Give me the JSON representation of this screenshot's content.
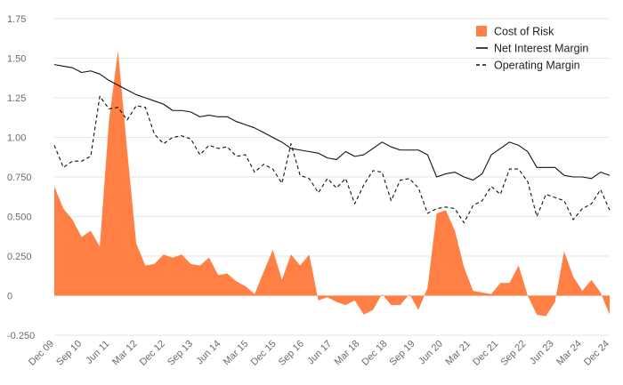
{
  "chart_data": {
    "type": "line",
    "title": "",
    "xlabel": "",
    "ylabel": "",
    "ylim": [
      -0.25,
      1.75
    ],
    "yticks": [
      -0.25,
      0,
      0.25,
      0.5,
      0.75,
      1.0,
      1.25,
      1.5,
      1.75
    ],
    "ytick_labels": [
      "-0.250",
      "0",
      "0.250",
      "0.500",
      "0.750",
      "1.00",
      "1.25",
      "1.50",
      "1.75"
    ],
    "x_tick_labels": [
      "Dec 09",
      "Sep 10",
      "Jun 11",
      "Mar 12",
      "Dec 12",
      "Sep 13",
      "Jun 14",
      "Mar 15",
      "Dec 15",
      "Sep 16",
      "Jun 17",
      "Mar 18",
      "Dec 18",
      "Sep 19",
      "Jun 20",
      "Mar 21",
      "Dec 21",
      "Sep 22",
      "Jun 23",
      "Mar 24",
      "Dec 24"
    ],
    "grid": "horizontal",
    "legend_position": "top-right",
    "colors": {
      "cost_of_risk": "#ff7f45",
      "net_interest_margin": "#111111",
      "operating_margin": "#111111"
    },
    "series": [
      {
        "name": "Cost of Risk",
        "style": "area",
        "values": [
          0.69,
          0.55,
          0.48,
          0.37,
          0.41,
          0.31,
          1.1,
          1.55,
          0.92,
          0.33,
          0.19,
          0.2,
          0.26,
          0.24,
          0.26,
          0.2,
          0.19,
          0.24,
          0.13,
          0.14,
          0.09,
          0.06,
          0.01,
          0.15,
          0.29,
          0.1,
          0.26,
          0.19,
          0.26,
          -0.03,
          -0.01,
          -0.04,
          -0.06,
          -0.03,
          -0.12,
          -0.09,
          0.01,
          -0.06,
          -0.06,
          0.01,
          -0.09,
          0.05,
          0.52,
          0.54,
          0.41,
          0.18,
          0.03,
          0.02,
          0.01,
          0.08,
          0.08,
          0.19,
          0.0,
          -0.12,
          -0.13,
          -0.04,
          0.28,
          0.12,
          0.03,
          0.1,
          0.02,
          -0.12
        ]
      },
      {
        "name": "Net Interest Margin",
        "style": "solid",
        "values": [
          1.46,
          1.45,
          1.44,
          1.41,
          1.42,
          1.4,
          1.36,
          1.33,
          1.3,
          1.27,
          1.25,
          1.23,
          1.21,
          1.17,
          1.17,
          1.16,
          1.13,
          1.14,
          1.13,
          1.13,
          1.1,
          1.08,
          1.06,
          1.03,
          1.0,
          0.97,
          0.93,
          0.92,
          0.91,
          0.9,
          0.87,
          0.86,
          0.91,
          0.88,
          0.89,
          0.93,
          0.97,
          0.94,
          0.92,
          0.92,
          0.92,
          0.89,
          0.75,
          0.77,
          0.78,
          0.75,
          0.73,
          0.77,
          0.89,
          0.93,
          0.97,
          0.95,
          0.91,
          0.81,
          0.81,
          0.81,
          0.76,
          0.75,
          0.75,
          0.74,
          0.78,
          0.76
        ]
      },
      {
        "name": "Operating Margin",
        "style": "dashed",
        "values": [
          0.95,
          0.81,
          0.85,
          0.85,
          0.88,
          1.26,
          1.18,
          1.19,
          1.11,
          1.2,
          1.19,
          1.02,
          0.96,
          1.0,
          1.01,
          0.99,
          0.89,
          0.95,
          0.93,
          0.94,
          0.88,
          0.89,
          0.78,
          0.83,
          0.8,
          0.71,
          0.96,
          0.76,
          0.74,
          0.65,
          0.74,
          0.68,
          0.74,
          0.58,
          0.7,
          0.79,
          0.78,
          0.6,
          0.73,
          0.74,
          0.68,
          0.52,
          0.55,
          0.56,
          0.55,
          0.46,
          0.57,
          0.6,
          0.69,
          0.64,
          0.8,
          0.8,
          0.72,
          0.5,
          0.64,
          0.62,
          0.6,
          0.48,
          0.55,
          0.58,
          0.67,
          0.54
        ]
      }
    ]
  }
}
